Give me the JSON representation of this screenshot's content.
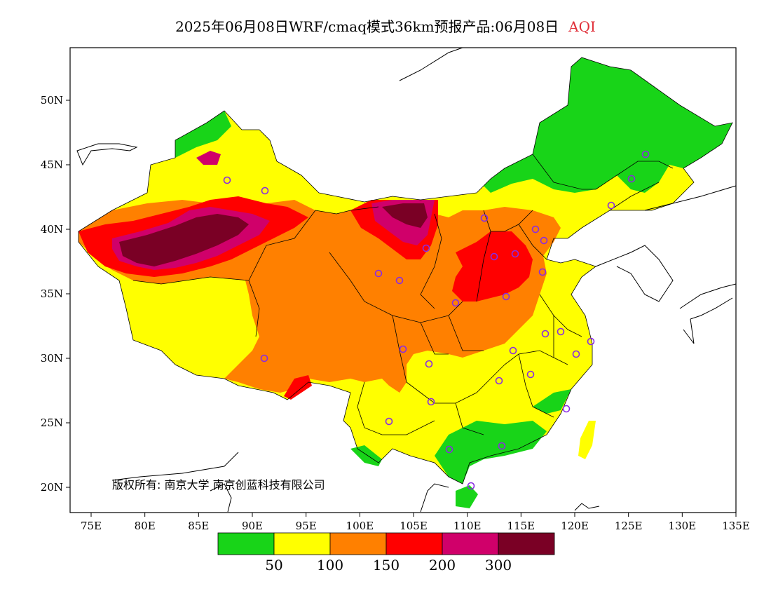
{
  "title": {
    "text": "2025年06月08日WRF/cmaq模式36km预报产品:06月08日",
    "product": "AQI"
  },
  "map": {
    "x_ticks": [
      "75E",
      "80E",
      "85E",
      "90E",
      "95E",
      "100E",
      "105E",
      "110E",
      "115E",
      "120E",
      "125E",
      "130E",
      "135E"
    ],
    "y_ticks": [
      "50N",
      "45N",
      "40N",
      "35N",
      "30N",
      "25N",
      "20N"
    ],
    "copyright": "版权所有: 南京大学  南京创蓝科技有限公司"
  },
  "legend": {
    "colors": [
      "#18d418",
      "#ffff00",
      "#ff8000",
      "#ff0000",
      "#d0006a",
      "#7a0025"
    ],
    "labels": [
      "50",
      "100",
      "150",
      "200",
      "300"
    ]
  }
}
